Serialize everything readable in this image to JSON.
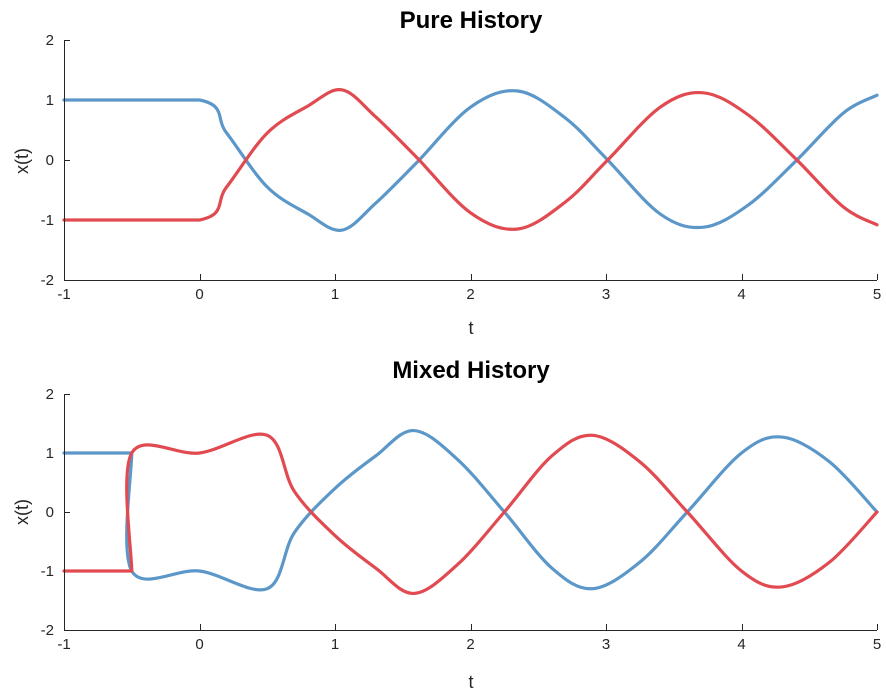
{
  "chart_data": [
    {
      "type": "line",
      "title": "Pure History",
      "xlabel": "t",
      "ylabel": "x(t)",
      "xlim": [
        -1,
        5
      ],
      "ylim": [
        -2,
        2
      ],
      "xticks": [
        "-1",
        "0",
        "1",
        "2",
        "3",
        "4",
        "5"
      ],
      "yticks": [
        "-2",
        "-1",
        "0",
        "1",
        "2"
      ],
      "grid": false,
      "series": [
        {
          "color": "#5b97c8",
          "x": [
            -1,
            0,
            0.2,
            0.5,
            0.8,
            1.05,
            1.3,
            1.6,
            2.0,
            2.35,
            2.7,
            3.0,
            3.4,
            3.72,
            4.05,
            4.4,
            4.75,
            5.0
          ],
          "y": [
            1,
            1,
            0.45,
            -0.45,
            -0.9,
            -1.17,
            -0.72,
            -0.05,
            0.88,
            1.15,
            0.7,
            0.03,
            -0.9,
            -1.12,
            -0.75,
            -0.02,
            0.78,
            1.08
          ]
        },
        {
          "color": "#e04a50",
          "x": [
            -1,
            0,
            0.2,
            0.5,
            0.8,
            1.05,
            1.3,
            1.6,
            2.0,
            2.35,
            2.7,
            3.0,
            3.4,
            3.72,
            4.05,
            4.4,
            4.75,
            5.0
          ],
          "y": [
            -1,
            -1,
            -0.45,
            0.45,
            0.9,
            1.17,
            0.72,
            0.05,
            -0.88,
            -1.15,
            -0.7,
            -0.03,
            0.88,
            1.12,
            0.75,
            0.02,
            -0.78,
            -1.08
          ]
        }
      ]
    },
    {
      "type": "line",
      "title": "Mixed History",
      "xlabel": "t",
      "ylabel": "x(t)",
      "xlim": [
        -1,
        5
      ],
      "ylim": [
        -2,
        2
      ],
      "xticks": [
        "-1",
        "0",
        "1",
        "2",
        "3",
        "4",
        "5"
      ],
      "yticks": [
        "-2",
        "-1",
        "0",
        "1",
        "2"
      ],
      "grid": false,
      "series": [
        {
          "color": "#5b97c8",
          "x": [
            -1,
            -0.5,
            -0.5,
            0,
            0.5,
            0.7,
            1.0,
            1.3,
            1.58,
            1.9,
            2.25,
            2.6,
            2.9,
            3.25,
            3.6,
            4.0,
            4.3,
            4.65,
            5.0
          ],
          "y": [
            1,
            1,
            -1,
            -1,
            -1.3,
            -0.35,
            0.4,
            0.95,
            1.38,
            0.9,
            0.0,
            -0.95,
            -1.3,
            -0.85,
            0.0,
            1.0,
            1.27,
            0.85,
            0.0
          ]
        },
        {
          "color": "#e04a50",
          "x": [
            -1,
            -0.5,
            -0.5,
            0,
            0.5,
            0.7,
            1.0,
            1.3,
            1.58,
            1.9,
            2.25,
            2.6,
            2.9,
            3.25,
            3.6,
            4.0,
            4.3,
            4.65,
            5.0
          ],
          "y": [
            -1,
            -1,
            1,
            1,
            1.3,
            0.35,
            -0.4,
            -0.95,
            -1.38,
            -0.9,
            0.0,
            0.95,
            1.3,
            0.85,
            0.0,
            -1.0,
            -1.27,
            -0.85,
            0.0
          ]
        }
      ]
    }
  ]
}
